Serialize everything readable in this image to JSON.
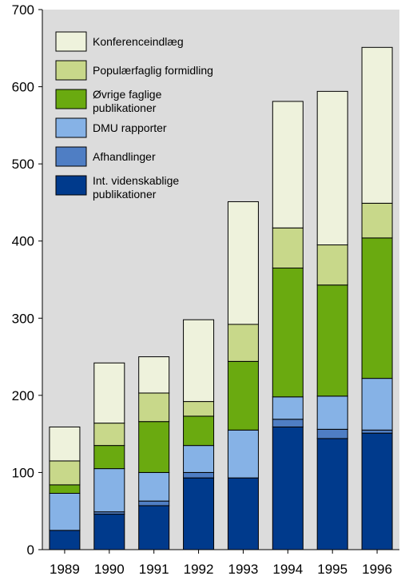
{
  "chart_data": {
    "type": "bar",
    "stacked": true,
    "categories": [
      "1989",
      "1990",
      "1991",
      "1992",
      "1993",
      "1994",
      "1995",
      "1996"
    ],
    "ylim": [
      0,
      700
    ],
    "yticks": [
      0,
      100,
      200,
      300,
      400,
      500,
      600,
      700
    ],
    "ytick_labels": [
      "0",
      "100",
      "200",
      "300",
      "400",
      "500",
      "600",
      "700"
    ],
    "grid": false,
    "legend_position": "top-left",
    "plot_background": "#dcdcdc",
    "series": [
      {
        "name": "Int. videnskablige publikationer",
        "color": "#003a8c",
        "values": [
          25,
          46,
          57,
          93,
          93,
          159,
          144,
          151
        ]
      },
      {
        "name": "Afhandlinger",
        "color": "#4f7ec4",
        "values": [
          0,
          3,
          6,
          7,
          0,
          10,
          12,
          4
        ]
      },
      {
        "name": "DMU rapporter",
        "color": "#86b2e6",
        "values": [
          48,
          56,
          37,
          35,
          62,
          29,
          43,
          67
        ]
      },
      {
        "name": "Øvrige faglige publikationer",
        "color": "#6aaa10",
        "values": [
          11,
          30,
          66,
          38,
          89,
          167,
          144,
          182
        ]
      },
      {
        "name": "Populærfaglig formidling",
        "color": "#c8d88a",
        "values": [
          31,
          29,
          37,
          19,
          48,
          52,
          52,
          45
        ]
      },
      {
        "name": "Konferenceindlæg",
        "color": "#eef2dc",
        "values": [
          44,
          78,
          47,
          106,
          159,
          164,
          199,
          202
        ]
      }
    ],
    "legend_order": [
      "Konferenceindlæg",
      "Populærfaglig formidling",
      "Øvrige faglige publikationer",
      "DMU rapporter",
      "Afhandlinger",
      "Int. videnskablige publikationer"
    ]
  }
}
